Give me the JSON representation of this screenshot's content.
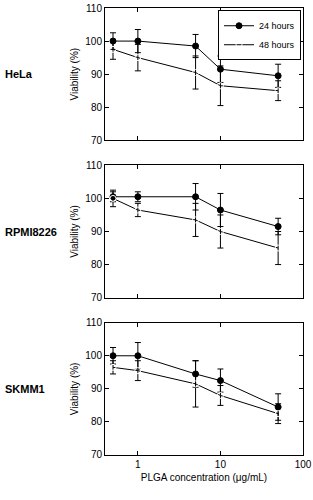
{
  "chart_data": [
    {
      "type": "scatter",
      "title": "HeLa",
      "y_label": "Viability (%)",
      "x": [
        0.5,
        1,
        5,
        10,
        50
      ],
      "log": "x",
      "grid": false,
      "legend": "upper right",
      "tick_labels": "y",
      "xlim": [
        0.4,
        100
      ],
      "xticks": [
        1,
        10,
        100
      ],
      "ylim": [
        70,
        110
      ],
      "yticks": [
        70,
        80,
        90,
        100,
        110
      ],
      "series": [
        {
          "name": "24 hours",
          "color": "#000000",
          "marker": "filled circle",
          "line_style": "solid",
          "values": [
            100,
            100,
            98.5,
            91.5,
            89.5
          ],
          "error": [
            2.5,
            3.5,
            3.5,
            4,
            3.5
          ]
        },
        {
          "name": "48 hours",
          "color": "#000000",
          "marker": "open circle",
          "line_style": "solid",
          "values": [
            97.5,
            95,
            90.5,
            86.5,
            85
          ],
          "error": [
            3,
            4,
            5,
            6,
            3
          ]
        }
      ]
    },
    {
      "type": "scatter",
      "title": "RPMI8226",
      "y_label": "Viability (%)",
      "x": [
        0.5,
        1,
        5,
        10,
        50
      ],
      "log": "x",
      "grid": false,
      "tick_labels": "y",
      "xlim": [
        0.4,
        100
      ],
      "xticks": [
        1,
        10,
        100
      ],
      "ylim": [
        70,
        110
      ],
      "yticks": [
        70,
        80,
        90,
        100,
        110
      ],
      "series": [
        {
          "name": "24 hours",
          "color": "#000000",
          "marker": "filled circle",
          "line_style": "solid",
          "values": [
            100.5,
            100.5,
            100.5,
            96.5,
            91.5
          ],
          "error": [
            1.5,
            1.5,
            4,
            5,
            2.5
          ]
        },
        {
          "name": "48 hours",
          "color": "#000000",
          "marker": "open circle",
          "line_style": "solid",
          "values": [
            100,
            96.5,
            93.5,
            90,
            85
          ],
          "error": [
            2.5,
            2,
            5,
            5,
            5
          ]
        }
      ]
    },
    {
      "type": "scatter",
      "title": "SKMM1",
      "y_label": "Viability (%)",
      "x_label": "PLGA concentration (μg/mL)",
      "x": [
        0.5,
        1,
        5,
        10,
        50
      ],
      "log": "x",
      "grid": false,
      "xlim": [
        0.4,
        100
      ],
      "xticks": [
        1,
        10,
        100
      ],
      "ylim": [
        70,
        110
      ],
      "yticks": [
        70,
        80,
        90,
        100,
        110
      ],
      "series": [
        {
          "name": "24 hours",
          "color": "#000000",
          "marker": "filled circle",
          "line_style": "solid",
          "values": [
            100,
            100,
            94.5,
            92.5,
            84.5
          ],
          "error": [
            2.5,
            4,
            4,
            3.5,
            4
          ]
        },
        {
          "name": "48 hours",
          "color": "#000000",
          "marker": "open circle",
          "line_style": "solid",
          "values": [
            96.5,
            95.5,
            91.5,
            88,
            82.5
          ],
          "error": [
            2,
            3,
            7,
            3,
            3
          ]
        }
      ]
    }
  ]
}
